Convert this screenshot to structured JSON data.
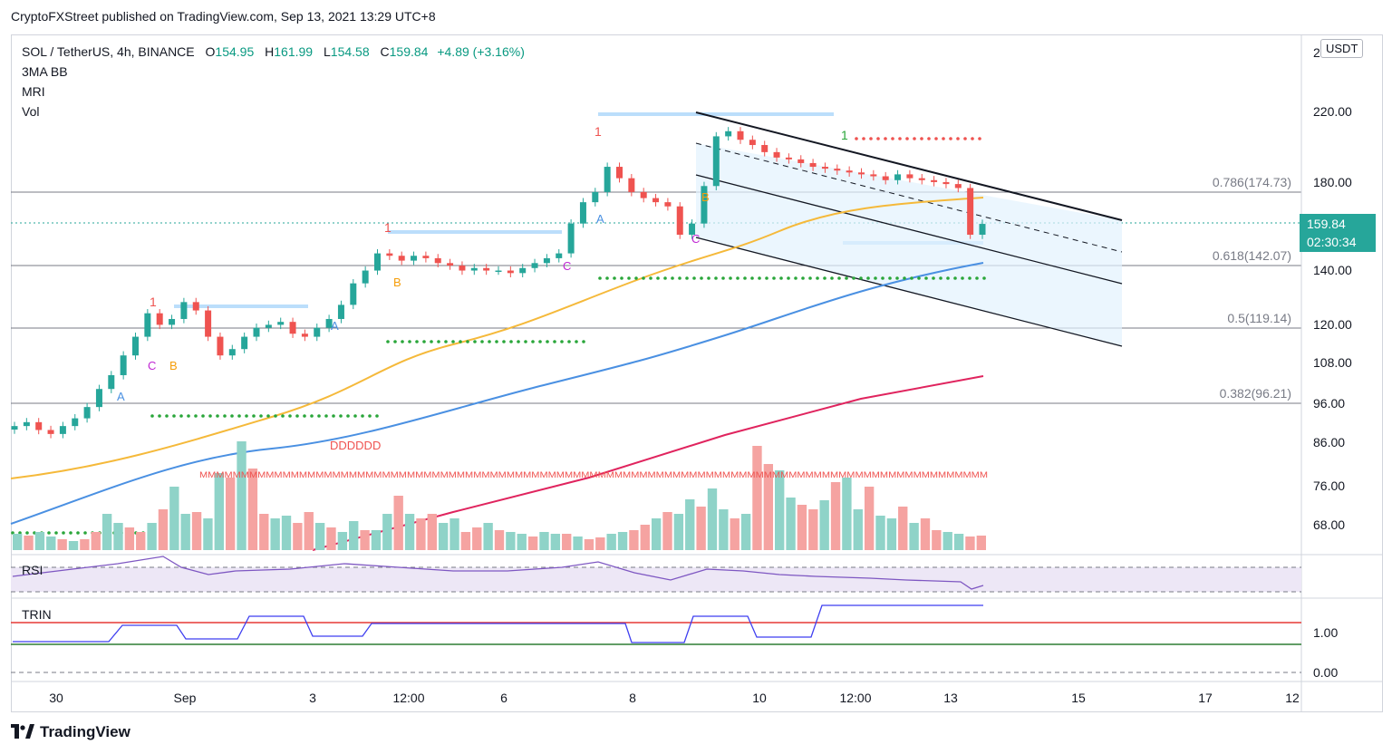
{
  "caption": "CryptoFXStreet published on TradingView.com, Sep 13, 2021 13:29 UTC+8",
  "footer": {
    "brand": "TradingView",
    "logo_icon": "tradingview-logo-icon"
  },
  "legend": {
    "symbol": "SOL / TetherUS, 4h, BINANCE",
    "o_label": "O",
    "o": "154.95",
    "h_label": "H",
    "h": "161.99",
    "l_label": "L",
    "l": "154.58",
    "c_label": "C",
    "c": "159.84",
    "change": "+4.89 (+3.16%)",
    "indicators": [
      "3MA BB",
      "MRI",
      "Vol"
    ]
  },
  "currency_badge": "USDT",
  "last_price": {
    "value": "159.84",
    "countdown": "02:30:34"
  },
  "colors": {
    "up": "#26a69a",
    "down": "#ef5350",
    "vol_up": "#8fd3c8",
    "vol_down": "#f5a3a1",
    "ma_short": "#f5b93a",
    "ma_mid": "#4a90e2",
    "ma_long": "#e0245e",
    "rsi": "#7e57c2",
    "trin": "#3f3ff0",
    "sr_blue": "#bbdefb",
    "green_dots": "#2aa63a",
    "red_dots": "#ef5350"
  },
  "chart_data": {
    "type": "candlestick",
    "symbol": "SOL / TetherUS",
    "timeframe": "4h",
    "exchange": "BINANCE",
    "x_ticks": [
      "30",
      "Sep",
      "3",
      "12:00",
      "6",
      "8",
      "10",
      "12:00",
      "13",
      "15",
      "17",
      "12"
    ],
    "y_ticks": [
      "2",
      "220.00",
      "180.00",
      "140.00",
      "120.00",
      "108.00",
      "96.00",
      "86.00",
      "76.00",
      "68.00"
    ],
    "y_scale": "log",
    "fib_levels": [
      {
        "label": "0.786(174.73)",
        "price": 174.73
      },
      {
        "label": "0.618(142.07)",
        "price": 142.07
      },
      {
        "label": "0.5(119.14)",
        "price": 119.14
      },
      {
        "label": "0.382(96.21)",
        "price": 96.21
      }
    ],
    "candles_close_approx": [
      90,
      91,
      89,
      88,
      90,
      92,
      95,
      100,
      104,
      110,
      116,
      124,
      120,
      122,
      128,
      125,
      116,
      110,
      112,
      116,
      119,
      120,
      121,
      117,
      116,
      119,
      122,
      127,
      135,
      140,
      147,
      146,
      144,
      146,
      145,
      143,
      142,
      140,
      141,
      140,
      140,
      139,
      141,
      143,
      145,
      147,
      160,
      170,
      175,
      188,
      182,
      175,
      172,
      170,
      168,
      155,
      160,
      178,
      205,
      208,
      203,
      200,
      196,
      193,
      192,
      190,
      188,
      187,
      186,
      185,
      184,
      183,
      181,
      184,
      182,
      181,
      180,
      179,
      177,
      155,
      159.84
    ],
    "annotations": [
      "A",
      "B",
      "C",
      "1",
      "DDDDDD",
      "MMMM"
    ],
    "sub_panels": [
      {
        "name": "RSI",
        "type": "line"
      },
      {
        "name": "TRIN",
        "type": "line",
        "y_ticks": [
          "1.00",
          "0.00"
        ]
      }
    ]
  }
}
